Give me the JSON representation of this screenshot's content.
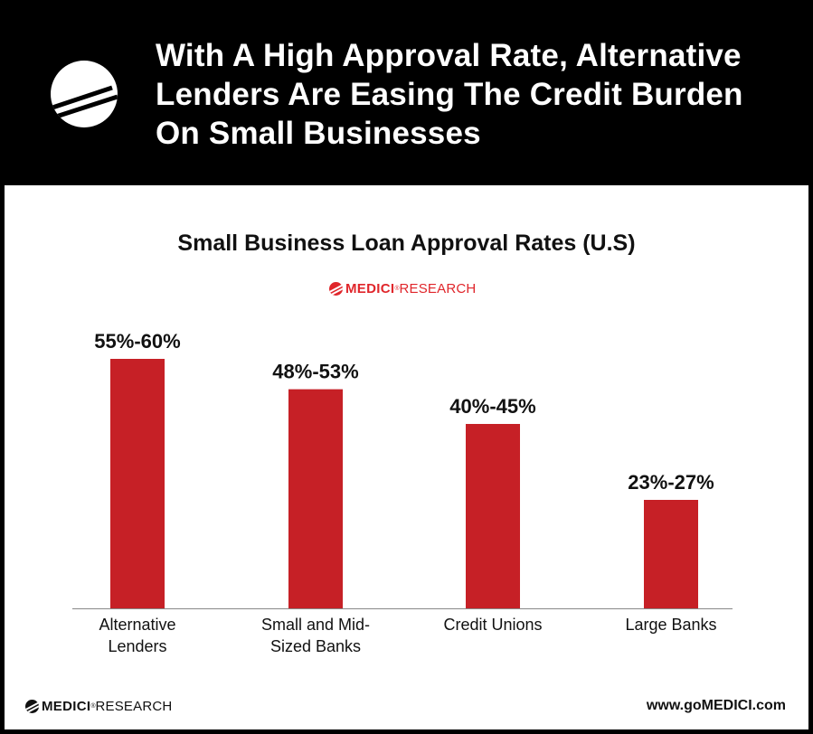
{
  "header": {
    "title_lines": [
      "With A High Approval Rate, Alternative",
      "Lenders Are Easing The Credit Burden",
      "On Small Businesses"
    ]
  },
  "brand": {
    "name": "MEDICI",
    "suffix": "RESEARCH",
    "reg": "®",
    "icon": "medici-logo-icon"
  },
  "footer": {
    "url": "www.goMEDICI.com"
  },
  "colors": {
    "bar": "#c62026",
    "accent_red": "#e0262b",
    "header_bg": "#000000"
  },
  "chart_data": {
    "type": "bar",
    "title": "Small Business Loan Approval Rates (U.S)",
    "xlabel": "",
    "ylabel": "",
    "categories": [
      [
        "Alternative",
        "Lenders"
      ],
      [
        "Small and Mid-",
        "Sized Banks"
      ],
      [
        "Credit Unions"
      ],
      [
        "Large Banks"
      ]
    ],
    "values": [
      57.5,
      50.5,
      42.5,
      25
    ],
    "data_labels": [
      "55%-60%",
      "48%-53%",
      "40%-45%",
      "23%-27%"
    ],
    "ylim": [
      0,
      60
    ],
    "grid": false,
    "legend": "none"
  }
}
